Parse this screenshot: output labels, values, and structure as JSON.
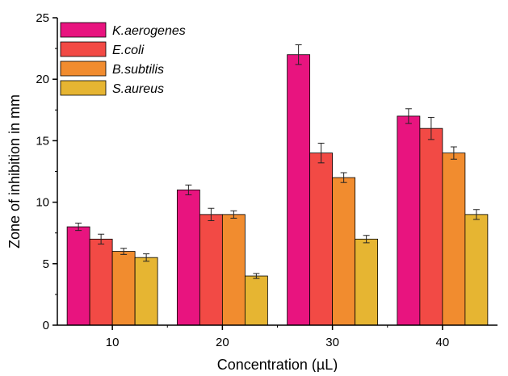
{
  "chart_data": {
    "type": "bar",
    "title": "",
    "xlabel": "Concentration (µL)",
    "ylabel": "Zone of inhibition in mm",
    "categories": [
      "10",
      "20",
      "30",
      "40"
    ],
    "ylim": [
      0,
      25
    ],
    "yticks": [
      "0",
      "5",
      "10",
      "15",
      "20",
      "25"
    ],
    "grid": false,
    "legend_position": "top-left",
    "series": [
      {
        "name": "K.aerogenes",
        "color": "#E8147F",
        "values": [
          8,
          11,
          22,
          17
        ],
        "errors": [
          0.3,
          0.4,
          0.8,
          0.6
        ]
      },
      {
        "name": "E.coli",
        "color": "#F24A45",
        "values": [
          7,
          9,
          14,
          16
        ],
        "errors": [
          0.4,
          0.5,
          0.8,
          0.9
        ]
      },
      {
        "name": "B.subtilis",
        "color": "#F18C2F",
        "values": [
          6,
          9,
          12,
          14
        ],
        "errors": [
          0.25,
          0.3,
          0.4,
          0.5
        ]
      },
      {
        "name": "S.aureus",
        "color": "#E6B532",
        "values": [
          5.5,
          4,
          7,
          9
        ],
        "errors": [
          0.3,
          0.2,
          0.3,
          0.4
        ]
      }
    ]
  }
}
